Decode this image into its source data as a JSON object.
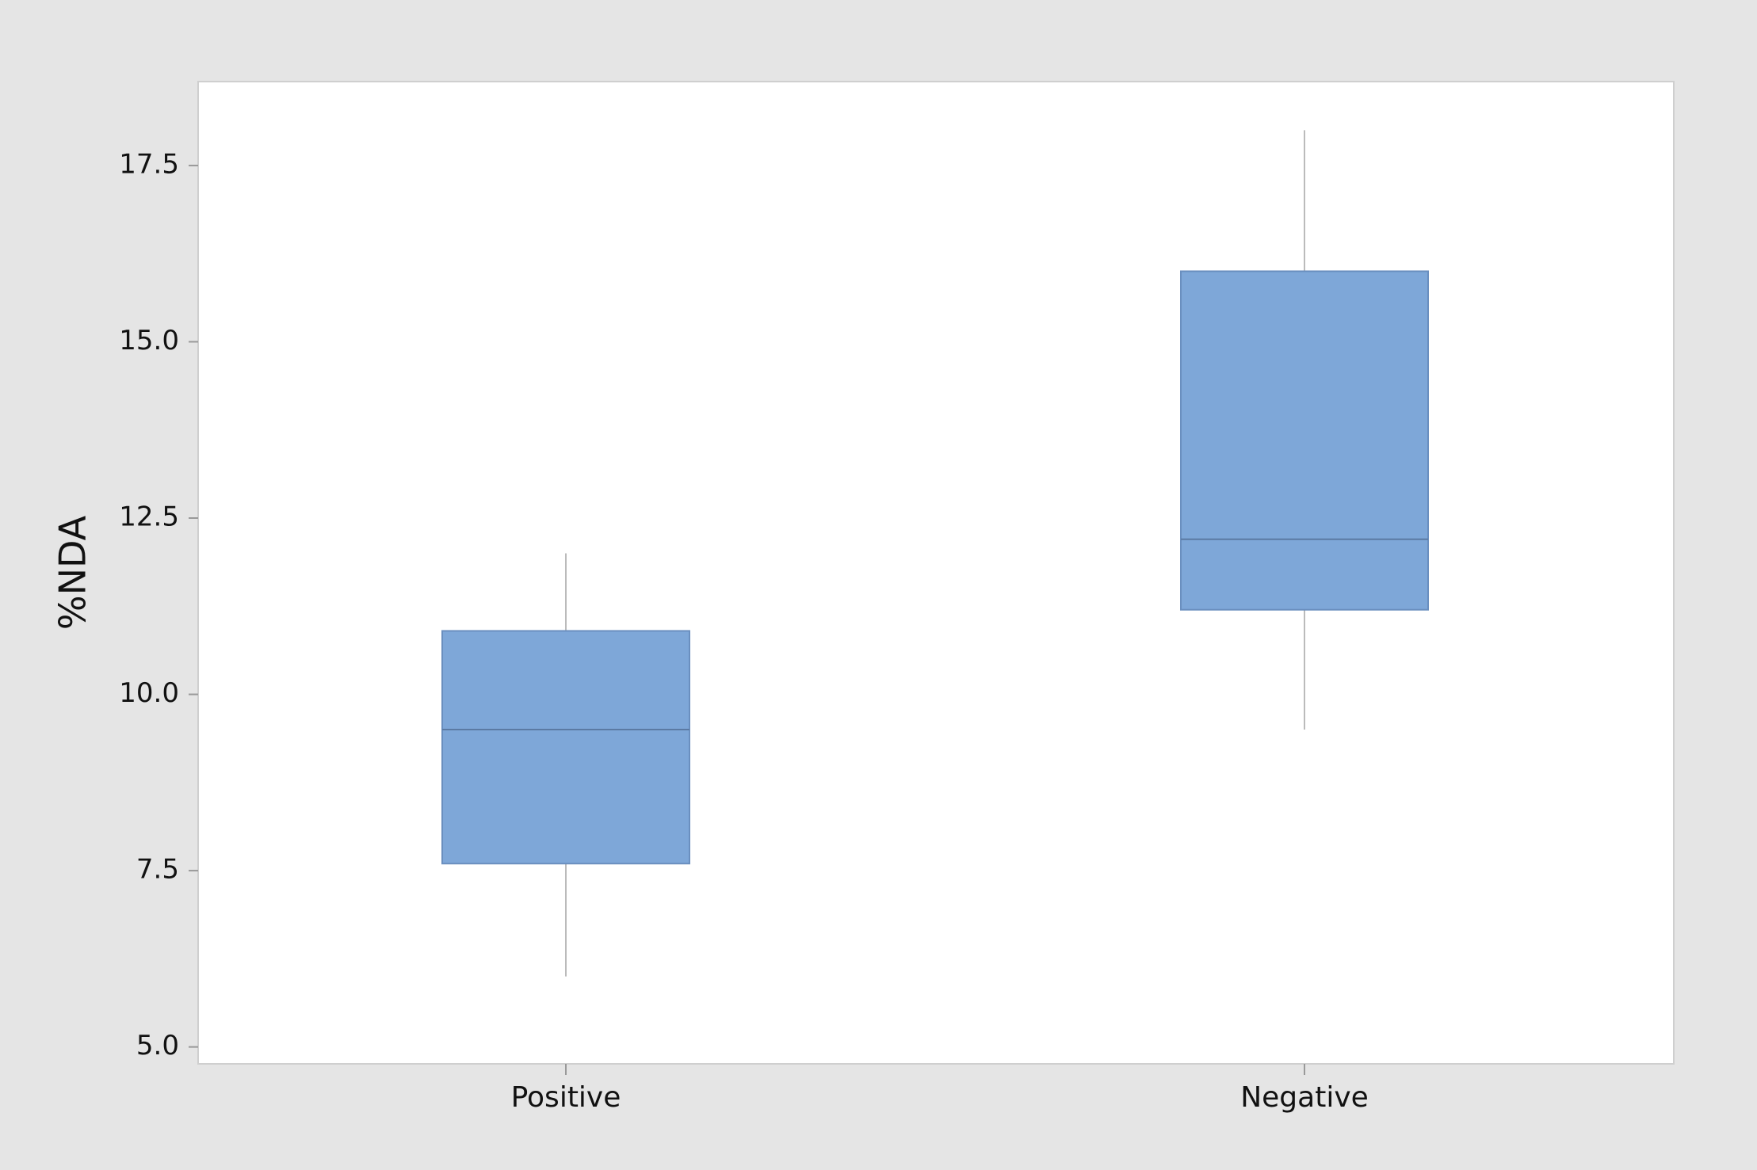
{
  "chart_data": {
    "type": "box",
    "y_label": "%NDA",
    "categories": [
      "Positive",
      "Negative"
    ],
    "boxes": [
      {
        "min": 6.0,
        "q1": 7.6,
        "median": 9.5,
        "q3": 10.9,
        "max": 12.0
      },
      {
        "min": 9.5,
        "q1": 11.2,
        "median": 12.2,
        "q3": 16.0,
        "max": 18.0
      }
    ],
    "color": "#7ea7d8",
    "ylim": [
      4.76,
      18.69
    ],
    "yticks": [
      {
        "value": 5,
        "label": "5.0"
      },
      7.5,
      {
        "value": 10,
        "label": "10.0"
      },
      12.5,
      {
        "value": 15,
        "label": "15.0"
      },
      17.5
    ]
  }
}
